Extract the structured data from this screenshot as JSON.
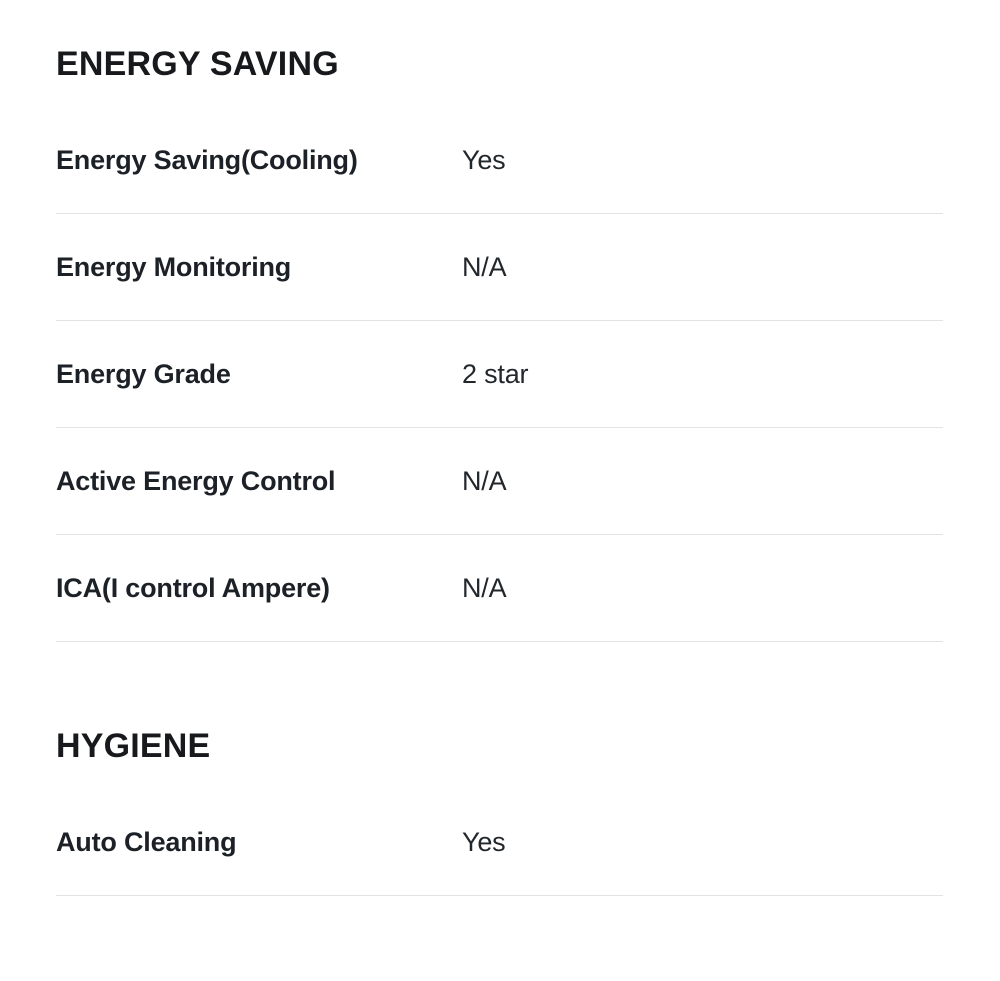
{
  "colors": {
    "background": "#ffffff",
    "heading_text": "#17191c",
    "label_text": "#1c2127",
    "value_text": "#22272c",
    "divider": "#e3e3e3"
  },
  "page": {
    "sections": [
      {
        "title": "ENERGY SAVING",
        "rows": [
          {
            "label": "Energy Saving(Cooling)",
            "value": "Yes"
          },
          {
            "label": "Energy Monitoring",
            "value": "N/A"
          },
          {
            "label": "Energy Grade",
            "value": "2 star"
          },
          {
            "label": "Active Energy Control",
            "value": "N/A"
          },
          {
            "label": "ICA(I control Ampere)",
            "value": "N/A"
          }
        ]
      },
      {
        "title": "HYGIENE",
        "rows": [
          {
            "label": "Auto Cleaning",
            "value": "Yes"
          }
        ]
      }
    ]
  }
}
